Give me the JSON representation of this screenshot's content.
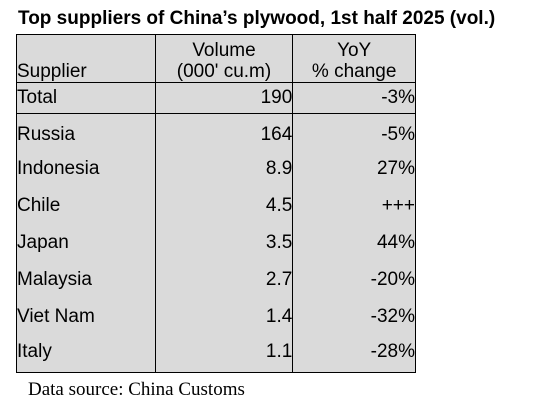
{
  "title": "Top suppliers of China’s plywood, 1st half 2025 (vol.)",
  "table": {
    "headers": {
      "supplier": "Supplier",
      "volume_line1": "Volume",
      "volume_line2": "(000' cu.m)",
      "yoy_line1": "YoY",
      "yoy_line2": "% change"
    },
    "total": {
      "label": "Total",
      "volume": "190",
      "yoy": "-3%"
    },
    "rows": [
      {
        "supplier": "Russia",
        "volume": "164",
        "yoy": "-5%"
      },
      {
        "supplier": "Indonesia",
        "volume": "8.9",
        "yoy": "27%"
      },
      {
        "supplier": "Chile",
        "volume": "4.5",
        "yoy": "+++"
      },
      {
        "supplier": "Japan",
        "volume": "3.5",
        "yoy": "44%"
      },
      {
        "supplier": "Malaysia",
        "volume": "2.7",
        "yoy": "-20%"
      },
      {
        "supplier": "Viet Nam",
        "volume": "1.4",
        "yoy": "-32%"
      },
      {
        "supplier": "Italy",
        "volume": "1.1",
        "yoy": "-28%"
      }
    ]
  },
  "source": "Data source: China Customs"
}
